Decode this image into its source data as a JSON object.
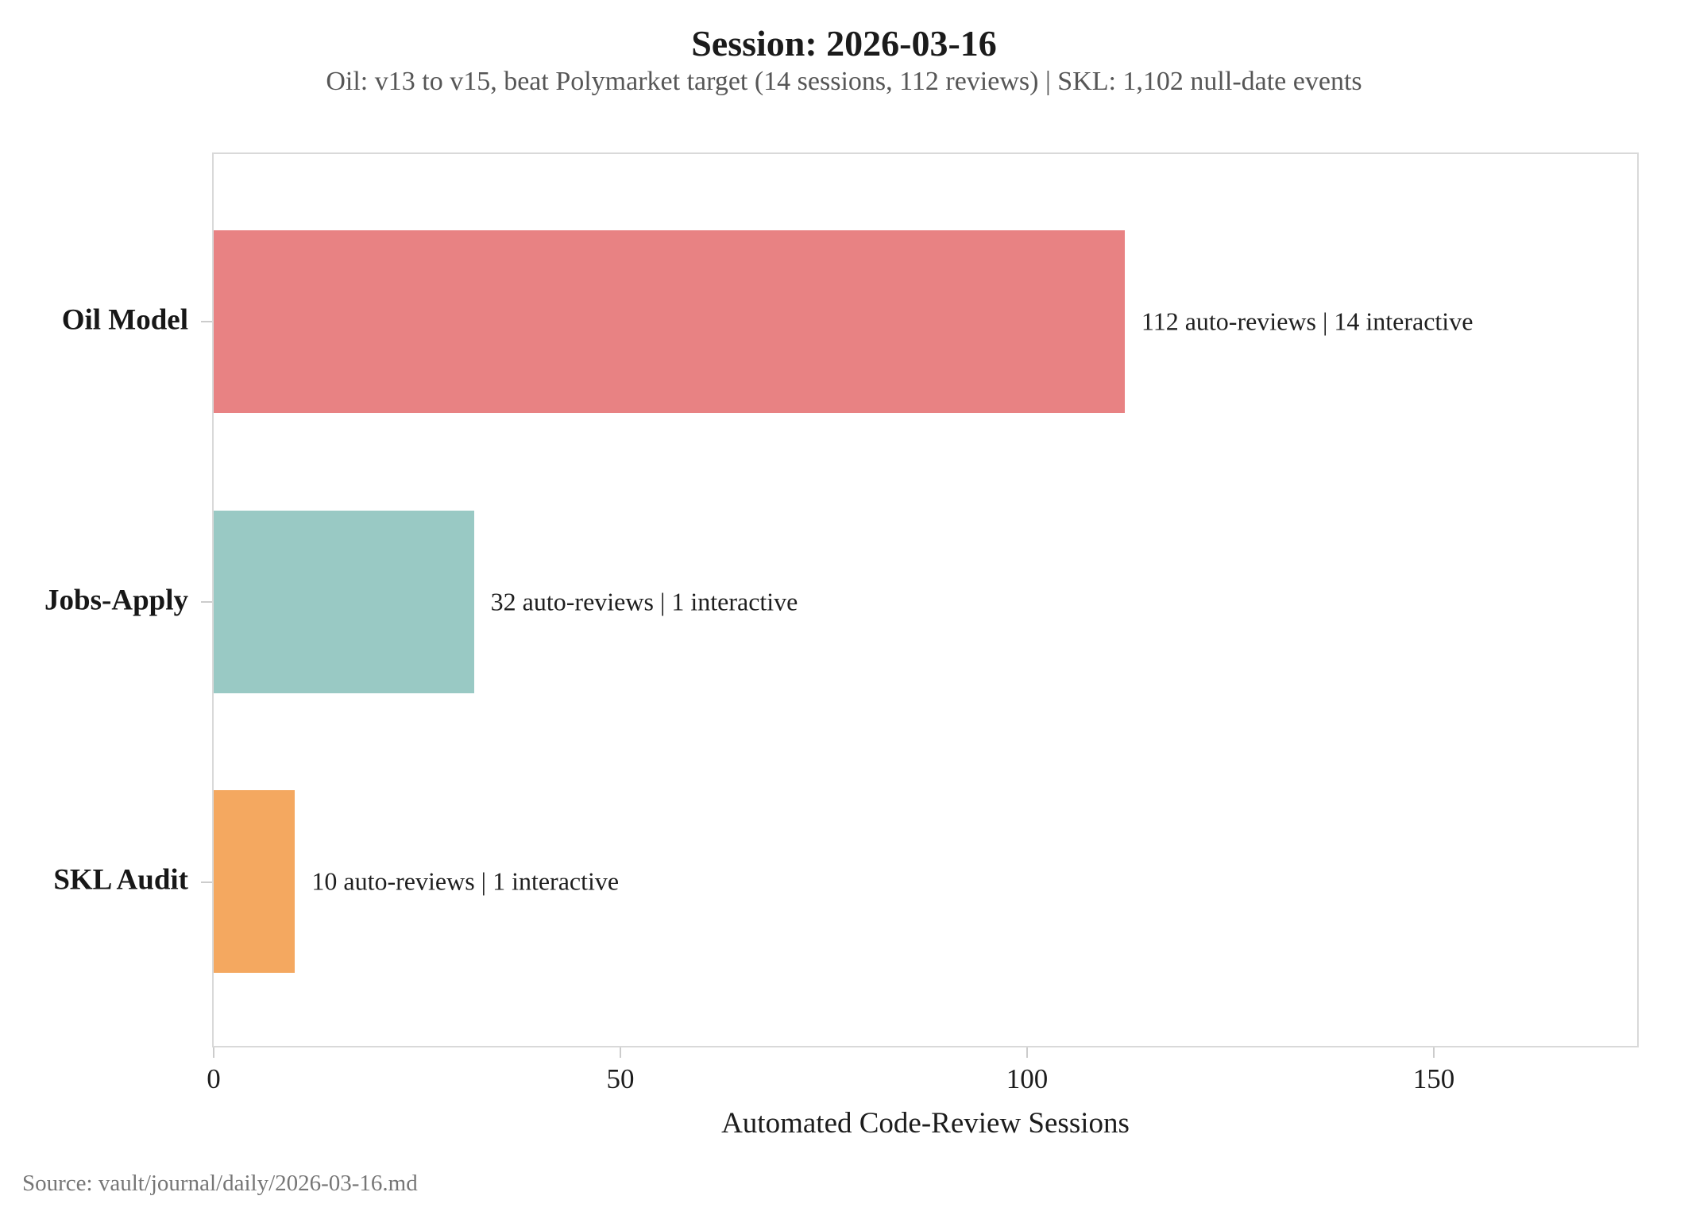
{
  "header": {
    "title": "Session: 2026-03-16",
    "subtitle": "Oil: v13 to v15, beat Polymarket target (14 sessions, 112 reviews) | SKL: 1,102 null-date events"
  },
  "chart_data": {
    "type": "bar",
    "orientation": "horizontal",
    "title": "Session: 2026-03-16",
    "subtitle": "Oil: v13 to v15, beat Polymarket target (14 sessions, 112 reviews) | SKL: 1,102 null-date events",
    "categories": [
      "Oil Model",
      "Jobs-Apply",
      "SKL Audit"
    ],
    "values": [
      112,
      32,
      10
    ],
    "annotations": [
      "112 auto-reviews | 14 interactive",
      "32 auto-reviews | 1 interactive",
      "10 auto-reviews | 1 interactive"
    ],
    "bar_colors": [
      "#e88283",
      "#99c9c4",
      "#f4a860"
    ],
    "xlabel": "Automated Code-Review Sessions",
    "ylabel": "",
    "xlim": [
      0,
      175
    ],
    "xticks": [
      0,
      50,
      100,
      150
    ],
    "grid": false,
    "legend": "none"
  },
  "footer": {
    "source": "Source: vault/journal/daily/2026-03-16.md"
  }
}
